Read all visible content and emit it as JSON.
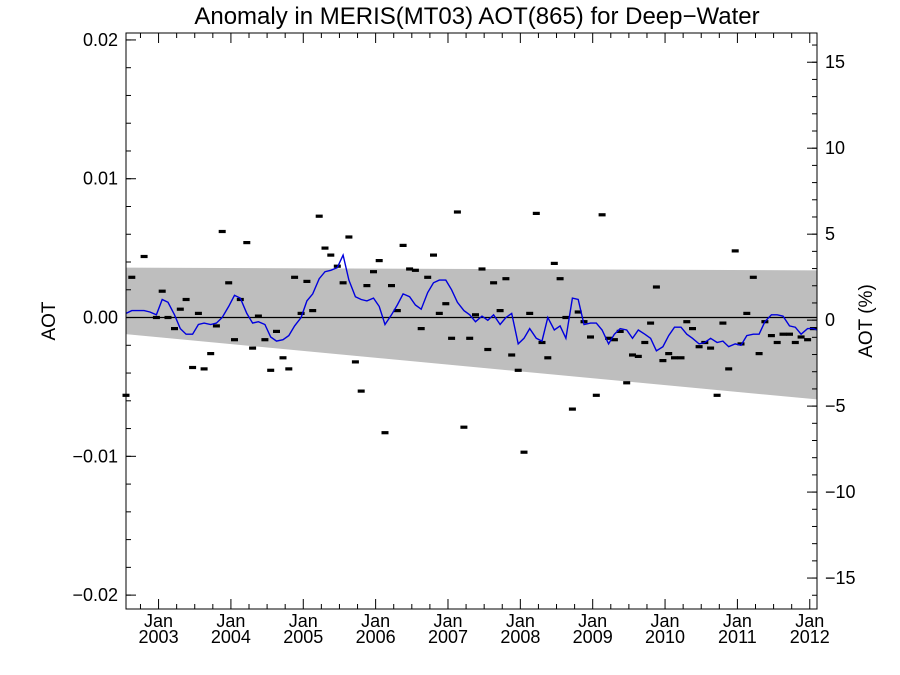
{
  "chart_data": {
    "type": "line",
    "title": "Anomaly in MERIS(MT03) AOT(865) for Deep−Water",
    "ylabel": "AOT",
    "ylabel_right": "AOT (%)",
    "xlim": [
      2002.55,
      2012.1
    ],
    "ylim": [
      -0.021,
      0.0205
    ],
    "ylim_right": [
      -16.8,
      16.7
    ],
    "x_ticks": [
      {
        "x": 2003.0,
        "month": "Jan",
        "year": "2003"
      },
      {
        "x": 2004.0,
        "month": "Jan",
        "year": "2004"
      },
      {
        "x": 2005.0,
        "month": "Jan",
        "year": "2005"
      },
      {
        "x": 2006.0,
        "month": "Jan",
        "year": "2006"
      },
      {
        "x": 2007.0,
        "month": "Jan",
        "year": "2007"
      },
      {
        "x": 2008.0,
        "month": "Jan",
        "year": "2008"
      },
      {
        "x": 2009.0,
        "month": "Jan",
        "year": "2009"
      },
      {
        "x": 2010.0,
        "month": "Jan",
        "year": "2010"
      },
      {
        "x": 2011.0,
        "month": "Jan",
        "year": "2011"
      },
      {
        "x": 2012.0,
        "month": "Jan",
        "year": "2012"
      }
    ],
    "y_ticks_left": [
      {
        "v": -0.02,
        "label": "−0.02"
      },
      {
        "v": -0.01,
        "label": "−0.01"
      },
      {
        "v": 0.0,
        "label": "0.00"
      },
      {
        "v": 0.01,
        "label": "0.01"
      },
      {
        "v": 0.02,
        "label": "0.02"
      }
    ],
    "y_ticks_right": [
      {
        "v": -15,
        "label": "−15"
      },
      {
        "v": -10,
        "label": "−10"
      },
      {
        "v": -5,
        "label": "−5"
      },
      {
        "v": 0,
        "label": "0"
      },
      {
        "v": 5,
        "label": "5"
      },
      {
        "v": 10,
        "label": "10"
      },
      {
        "v": 15,
        "label": "15"
      }
    ],
    "band": {
      "x": [
        2002.55,
        2012.1
      ],
      "upper": [
        0.0036,
        0.0034
      ],
      "lower": [
        -0.0012,
        -0.0059
      ],
      "color": "#bebebe"
    },
    "zero_line": 0.0,
    "series": [
      {
        "kind": "points",
        "color": "#000000",
        "x": [
          2002.55,
          2002.63,
          2002.8,
          2002.97,
          2003.05,
          2003.13,
          2003.22,
          2003.3,
          2003.38,
          2003.47,
          2003.55,
          2003.63,
          2003.72,
          2003.8,
          2003.88,
          2003.97,
          2004.05,
          2004.13,
          2004.22,
          2004.3,
          2004.38,
          2004.47,
          2004.55,
          2004.63,
          2004.72,
          2004.8,
          2004.88,
          2004.97,
          2005.05,
          2005.13,
          2005.22,
          2005.3,
          2005.38,
          2005.47,
          2005.55,
          2005.63,
          2005.72,
          2005.8,
          2005.88,
          2005.97,
          2006.05,
          2006.13,
          2006.22,
          2006.3,
          2006.38,
          2006.47,
          2006.55,
          2006.63,
          2006.72,
          2006.8,
          2006.88,
          2006.97,
          2007.05,
          2007.13,
          2007.22,
          2007.3,
          2007.38,
          2007.47,
          2007.55,
          2007.63,
          2007.72,
          2007.8,
          2007.88,
          2007.97,
          2008.05,
          2008.13,
          2008.22,
          2008.3,
          2008.38,
          2008.47,
          2008.55,
          2008.63,
          2008.72,
          2008.8,
          2008.88,
          2008.97,
          2009.05,
          2009.13,
          2009.22,
          2009.3,
          2009.38,
          2009.47,
          2009.55,
          2009.63,
          2009.72,
          2009.8,
          2009.88,
          2009.97,
          2010.05,
          2010.13,
          2010.22,
          2010.3,
          2010.38,
          2010.47,
          2010.55,
          2010.63,
          2010.72,
          2010.8,
          2010.88,
          2010.97,
          2011.05,
          2011.13,
          2011.22,
          2011.3,
          2011.38,
          2011.47,
          2011.55,
          2011.63,
          2011.72,
          2011.8,
          2011.88,
          2011.97,
          2012.05
        ],
        "y": [
          -0.0056,
          0.0029,
          0.0044,
          0.0,
          0.0019,
          0.0,
          -0.0008,
          0.0006,
          0.0013,
          -0.0036,
          0.0003,
          -0.0037,
          -0.0026,
          -0.0006,
          0.0062,
          0.0025,
          -0.0016,
          0.0013,
          0.0054,
          -0.0022,
          0.0001,
          -0.0016,
          -0.0038,
          -0.001,
          -0.0029,
          -0.0037,
          0.0029,
          0.0003,
          0.0026,
          0.0005,
          0.0073,
          0.005,
          0.0045,
          0.0037,
          0.0025,
          0.0058,
          -0.0032,
          -0.0053,
          0.0023,
          0.0033,
          0.0041,
          -0.0083,
          0.0023,
          0.0005,
          0.0052,
          0.0035,
          0.0034,
          -0.0008,
          0.0029,
          0.0045,
          0.0003,
          0.001,
          -0.0015,
          0.0076,
          -0.0079,
          -0.0015,
          0.0002,
          0.0035,
          -0.0023,
          0.0025,
          0.0005,
          0.0028,
          -0.0027,
          -0.0038,
          -0.0097,
          0.0003,
          0.0075,
          -0.0018,
          -0.0029,
          0.0039,
          0.0028,
          0.0,
          -0.0066,
          0.0004,
          -0.0003,
          -0.0014,
          -0.0056,
          0.0074,
          -0.0015,
          -0.0016,
          -0.001,
          -0.0047,
          -0.0027,
          -0.0028,
          -0.0018,
          -0.0004,
          0.0022,
          -0.0031,
          -0.0026,
          -0.0029,
          -0.0029,
          -0.0003,
          -0.0008,
          -0.0021,
          -0.0018,
          -0.0022,
          -0.0056,
          -0.0004,
          -0.0037,
          0.0048,
          -0.0019,
          0.0003,
          0.0029,
          -0.0026,
          -0.0003,
          -0.0013,
          -0.0018,
          -0.0012,
          -0.0012,
          -0.0018,
          -0.0014,
          -0.0016,
          -0.0008
        ]
      },
      {
        "kind": "line",
        "color": "#0000dd",
        "x": [
          2002.55,
          2002.63,
          2002.72,
          2002.8,
          2002.88,
          2002.97,
          2003.05,
          2003.13,
          2003.22,
          2003.3,
          2003.38,
          2003.47,
          2003.55,
          2003.63,
          2003.72,
          2003.8,
          2003.88,
          2003.97,
          2004.05,
          2004.13,
          2004.22,
          2004.3,
          2004.38,
          2004.47,
          2004.55,
          2004.63,
          2004.72,
          2004.8,
          2004.88,
          2004.97,
          2005.05,
          2005.13,
          2005.22,
          2005.3,
          2005.38,
          2005.47,
          2005.55,
          2005.63,
          2005.72,
          2005.8,
          2005.88,
          2005.97,
          2006.05,
          2006.13,
          2006.22,
          2006.3,
          2006.38,
          2006.47,
          2006.55,
          2006.63,
          2006.72,
          2006.8,
          2006.88,
          2006.97,
          2007.05,
          2007.13,
          2007.22,
          2007.3,
          2007.38,
          2007.47,
          2007.55,
          2007.63,
          2007.72,
          2007.8,
          2007.88,
          2007.97,
          2008.05,
          2008.13,
          2008.22,
          2008.3,
          2008.38,
          2008.47,
          2008.55,
          2008.63,
          2008.72,
          2008.8,
          2008.88,
          2008.97,
          2009.05,
          2009.13,
          2009.22,
          2009.3,
          2009.38,
          2009.47,
          2009.55,
          2009.63,
          2009.72,
          2009.8,
          2009.88,
          2009.97,
          2010.05,
          2010.13,
          2010.22,
          2010.3,
          2010.38,
          2010.47,
          2010.55,
          2010.63,
          2010.72,
          2010.8,
          2010.88,
          2010.97,
          2011.05,
          2011.13,
          2011.22,
          2011.3,
          2011.38,
          2011.47,
          2011.55,
          2011.63,
          2011.72,
          2011.8,
          2011.88,
          2011.97,
          2012.05,
          2012.1
        ],
        "y": [
          0.0003,
          0.0005,
          0.0005,
          0.0005,
          0.0004,
          0.0002,
          0.0013,
          0.0011,
          0.0002,
          -0.0008,
          -0.0012,
          -0.0012,
          -0.0005,
          -0.0004,
          -0.0005,
          -0.0004,
          0.0,
          0.0008,
          0.0016,
          0.0014,
          0.0003,
          -0.0004,
          -0.0003,
          -0.0005,
          -0.0014,
          -0.0017,
          -0.0016,
          -0.0013,
          -0.0006,
          0.0,
          0.0012,
          0.0017,
          0.0028,
          0.0033,
          0.0034,
          0.0036,
          0.0045,
          0.0027,
          0.0015,
          0.0013,
          0.0012,
          0.0014,
          0.0008,
          -0.0005,
          0.0002,
          0.0009,
          0.0017,
          0.0015,
          0.0009,
          0.0006,
          0.0018,
          0.0025,
          0.0027,
          0.0027,
          0.002,
          0.0011,
          0.0005,
          0.0002,
          -0.0003,
          0.0001,
          -0.0002,
          0.0002,
          -0.0005,
          0.0,
          0.0003,
          -0.0019,
          -0.0015,
          -0.0008,
          -0.0015,
          -0.0017,
          0.0,
          -0.0009,
          -0.0006,
          -0.0015,
          0.0014,
          0.0013,
          -0.0005,
          -0.0004,
          -0.0004,
          -0.0009,
          -0.0019,
          -0.0012,
          -0.0008,
          -0.0009,
          -0.0015,
          -0.0009,
          -0.0012,
          -0.0015,
          -0.0024,
          -0.0021,
          -0.0013,
          -0.0007,
          -0.0007,
          -0.0012,
          -0.0015,
          -0.0019,
          -0.0018,
          -0.0015,
          -0.0018,
          -0.0017,
          -0.0021,
          -0.0019,
          -0.002,
          -0.0013,
          -0.0012,
          -0.0012,
          -0.0003,
          0.0002,
          0.0002,
          0.0001,
          -0.0006,
          -0.0007,
          -0.0012,
          -0.0008,
          -0.0008,
          -0.0009
        ]
      }
    ]
  }
}
